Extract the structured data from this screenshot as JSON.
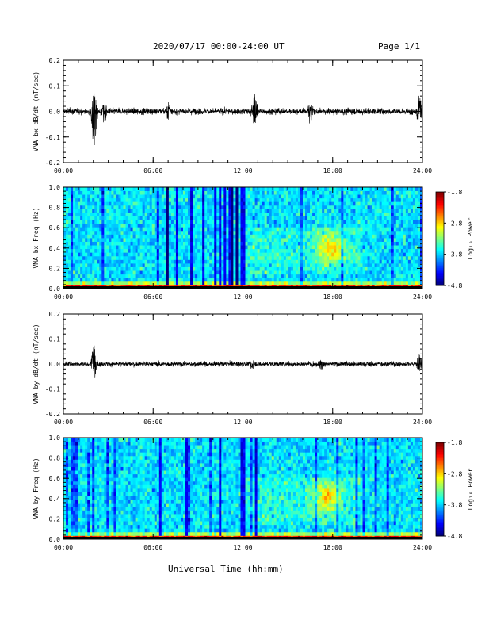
{
  "header": {
    "title": "2020/07/17  00:00-24:00 UT",
    "page": "Page 1/1"
  },
  "xlabel": "Universal Time (hh:mm)",
  "colorbar": {
    "label": "Log₁₀ Power",
    "ticks": [
      "-1.8",
      "-2.8",
      "-3.8",
      "-4.8"
    ]
  },
  "chart_data": [
    {
      "type": "line",
      "ylabel": "VNA bx dB/dt (nT/sec)",
      "xlim": [
        0,
        24
      ],
      "ylim": [
        -0.2,
        0.2
      ],
      "yticks": [
        "0.2",
        "0.1",
        "0.0",
        "-0.1",
        "-0.2"
      ],
      "xticks": [
        "00:00",
        "06:00",
        "12:00",
        "18:00",
        "24:00"
      ],
      "x_unit": "hours UT",
      "baseline_amplitude": 0.01,
      "bursts": [
        {
          "t": 2.05,
          "amp_pos": 0.08,
          "amp_neg": -0.15
        },
        {
          "t": 2.7,
          "amp_pos": 0.03,
          "amp_neg": -0.05
        },
        {
          "t": 7.0,
          "amp_pos": 0.03,
          "amp_neg": -0.03
        },
        {
          "t": 12.8,
          "amp_pos": 0.08,
          "amp_neg": -0.06
        },
        {
          "t": 16.5,
          "amp_pos": 0.03,
          "amp_neg": -0.05
        },
        {
          "t": 23.8,
          "amp_pos": 0.07,
          "amp_neg": -0.06
        }
      ]
    },
    {
      "type": "heatmap",
      "ylabel": "VNA bx Freq (Hz)",
      "xlim": [
        0,
        24
      ],
      "ylim": [
        0.0,
        1.0
      ],
      "yticks": [
        "1.0",
        "0.8",
        "0.6",
        "0.4",
        "0.2",
        "0.0"
      ],
      "xticks": [
        "00:00",
        "06:00",
        "12:00",
        "18:00",
        "24:00"
      ],
      "zlim": [
        -4.8,
        -1.8
      ],
      "low_power_gaps_hours": [
        6.9,
        7.6,
        8.6,
        9.3,
        10.1,
        10.5,
        10.8,
        11.2,
        11.6,
        12.0
      ],
      "enhancement": {
        "t": 17.9,
        "f": 0.4,
        "level": -2.9
      }
    },
    {
      "type": "line",
      "ylabel": "VNA by dB/dt (nT/sec)",
      "xlim": [
        0,
        24
      ],
      "ylim": [
        -0.2,
        0.2
      ],
      "yticks": [
        "0.2",
        "0.1",
        "0.0",
        "-0.1",
        "-0.2"
      ],
      "xticks": [
        "00:00",
        "06:00",
        "12:00",
        "18:00",
        "24:00"
      ],
      "x_unit": "hours UT",
      "baseline_amplitude": 0.008,
      "bursts": [
        {
          "t": 2.05,
          "amp_pos": 0.08,
          "amp_neg": -0.06
        },
        {
          "t": 12.6,
          "amp_pos": 0.02,
          "amp_neg": -0.02
        },
        {
          "t": 17.2,
          "amp_pos": 0.02,
          "amp_neg": -0.03
        },
        {
          "t": 23.8,
          "amp_pos": 0.05,
          "amp_neg": -0.03
        }
      ]
    },
    {
      "type": "heatmap",
      "ylabel": "VNA by Freq (Hz)",
      "xlim": [
        0,
        24
      ],
      "ylim": [
        0.0,
        1.0
      ],
      "yticks": [
        "1.0",
        "0.8",
        "0.6",
        "0.4",
        "0.2",
        "0.0"
      ],
      "xticks": [
        "00:00",
        "06:00",
        "12:00",
        "18:00",
        "24:00"
      ],
      "zlim": [
        -4.8,
        -1.8
      ],
      "low_power_gaps_hours": [
        6.5,
        8.3,
        10.5,
        12.0,
        12.9
      ],
      "enhancement": {
        "t": 17.6,
        "f": 0.42,
        "level": -3.0
      }
    }
  ]
}
